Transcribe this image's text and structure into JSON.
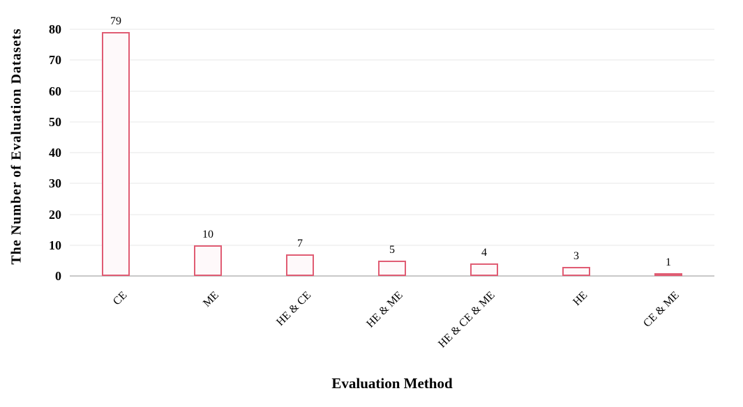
{
  "chart_data": {
    "type": "bar",
    "title": "",
    "categories": [
      "CE",
      "ME",
      "HE & CE",
      "HE & ME",
      "HE & CE & ME",
      "HE",
      "CE & ME"
    ],
    "values": [
      79,
      10,
      7,
      5,
      4,
      3,
      1
    ],
    "value_labels": [
      "79",
      "10",
      "7",
      "5",
      "4",
      "3",
      "1"
    ],
    "xlabel": "Evaluation Method",
    "ylabel": "The Number of Evaluation Datasets",
    "ylim": [
      0,
      80
    ],
    "yticks": [
      0,
      10,
      20,
      30,
      40,
      50,
      60,
      70,
      80
    ],
    "grid": "horizontal-only",
    "legend": "none",
    "x_tick_rotation_deg": 45,
    "colors": {
      "bar_border": "#e05c73",
      "bar_fill": "#fef9fa",
      "gridline": "#f3f3f3",
      "axis_line": "#c8c8c8",
      "text": "#000000"
    }
  }
}
